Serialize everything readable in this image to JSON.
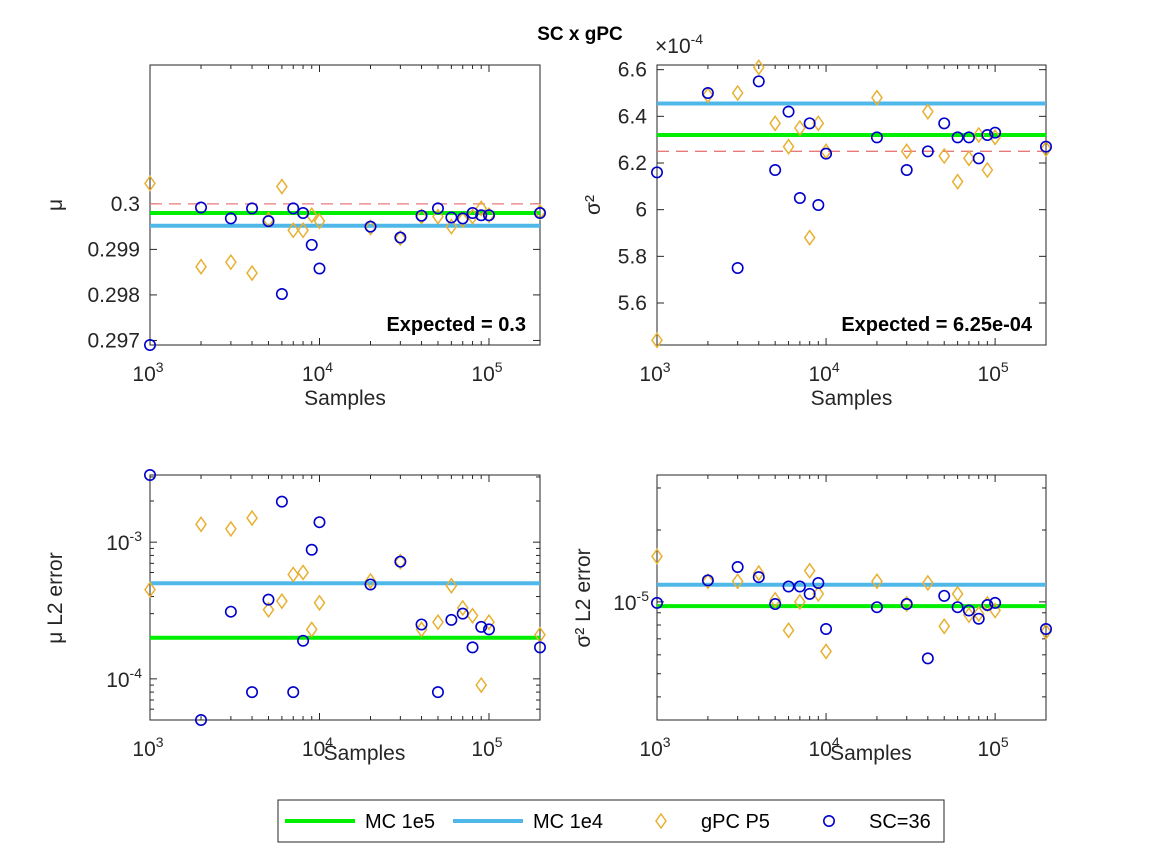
{
  "figure": {
    "title": "SC x gPC",
    "legend": {
      "placement": "bottom-center",
      "items": [
        {
          "label": "MC 1e5",
          "kind": "line",
          "color": "#00ee00"
        },
        {
          "label": "MC 1e4",
          "kind": "line",
          "color": "#4fb8e8"
        },
        {
          "label": "gPC P5",
          "kind": "diamond",
          "color": "#e8b030"
        },
        {
          "label": "SC=36",
          "kind": "circle",
          "color": "#0000cc"
        }
      ]
    }
  },
  "chart_data": [
    {
      "id": "mu",
      "type": "scatter",
      "xlabel": "Samples",
      "ylabel": "μ",
      "xscale": "log",
      "yscale": "linear",
      "xlim": [
        1000,
        200000
      ],
      "ylim": [
        0.2969,
        0.30305
      ],
      "yticks": [
        0.297,
        0.298,
        0.299,
        0.3
      ],
      "ytick_labels": [
        "0.297",
        "0.298",
        "0.299",
        "0.3"
      ],
      "xticks": [
        1000,
        10000,
        100000
      ],
      "xtick_labels": [
        {
          "base": "10",
          "exp": "3"
        },
        {
          "base": "10",
          "exp": "4"
        },
        {
          "base": "10",
          "exp": "5"
        }
      ],
      "annotation": "Expected = 0.3",
      "reference_line": {
        "y": 0.3,
        "color": "#e87a7a",
        "style": "dashed"
      },
      "hlines": [
        {
          "series": "MC 1e5",
          "y": 0.2998,
          "color": "#00ee00"
        },
        {
          "series": "MC 1e4",
          "y": 0.29952,
          "color": "#4fb8e8"
        }
      ],
      "series": [
        {
          "name": "gPC P5",
          "marker": "diamond",
          "color": "#e8b030",
          "x": [
            1000,
            2000,
            3000,
            4000,
            5000,
            6000,
            7000,
            8000,
            9000,
            10000,
            20000,
            30000,
            40000,
            50000,
            60000,
            70000,
            80000,
            90000,
            100000,
            200000
          ],
          "y": [
            0.30045,
            0.29862,
            0.29872,
            0.29848,
            0.29965,
            0.30038,
            0.29942,
            0.29942,
            0.29975,
            0.29962,
            0.29948,
            0.29925,
            0.29972,
            0.29972,
            0.2995,
            0.29965,
            0.29972,
            0.2999,
            0.29975,
            0.29982
          ]
        },
        {
          "name": "SC=36",
          "marker": "circle",
          "color": "#0000cc",
          "x": [
            1000,
            2000,
            3000,
            4000,
            5000,
            6000,
            7000,
            8000,
            9000,
            10000,
            20000,
            30000,
            40000,
            50000,
            60000,
            70000,
            80000,
            90000,
            100000,
            200000
          ],
          "y": [
            0.2969,
            0.29992,
            0.29968,
            0.2999,
            0.29962,
            0.29802,
            0.2999,
            0.2998,
            0.2991,
            0.29858,
            0.2995,
            0.29926,
            0.29974,
            0.2999,
            0.2997,
            0.29968,
            0.2998,
            0.29975,
            0.29975,
            0.2998
          ]
        }
      ]
    },
    {
      "id": "sigma2",
      "type": "scatter",
      "xlabel": "Samples",
      "ylabel": "σ²",
      "xscale": "log",
      "yscale": "linear",
      "xlim": [
        1000,
        200000
      ],
      "ylim": [
        5.42,
        6.62
      ],
      "y_multiplier": "×10^-4",
      "yticks": [
        5.6,
        5.8,
        6.0,
        6.2,
        6.4,
        6.6
      ],
      "ytick_labels": [
        "5.6",
        "5.8",
        "6",
        "6.2",
        "6.4",
        "6.6"
      ],
      "xticks": [
        1000,
        10000,
        100000
      ],
      "xtick_labels": [
        {
          "base": "10",
          "exp": "3"
        },
        {
          "base": "10",
          "exp": "4"
        },
        {
          "base": "10",
          "exp": "5"
        }
      ],
      "exponent_label": {
        "base": "×10",
        "exp": "-4"
      },
      "annotation": "Expected = 6.25e-04",
      "reference_line": {
        "y": 6.25,
        "color": "#e87a7a",
        "style": "dashed"
      },
      "hlines": [
        {
          "series": "MC 1e5",
          "y": 6.32,
          "color": "#00ee00"
        },
        {
          "series": "MC 1e4",
          "y": 6.455,
          "color": "#4fb8e8"
        }
      ],
      "series": [
        {
          "name": "gPC P5",
          "marker": "diamond",
          "color": "#e8b030",
          "x": [
            1000,
            2000,
            3000,
            4000,
            5000,
            6000,
            7000,
            8000,
            9000,
            10000,
            20000,
            30000,
            40000,
            50000,
            60000,
            70000,
            80000,
            90000,
            100000,
            200000
          ],
          "y": [
            5.44,
            6.49,
            6.5,
            6.61,
            6.37,
            6.27,
            6.35,
            5.88,
            6.37,
            6.25,
            6.48,
            6.25,
            6.42,
            6.23,
            6.12,
            6.22,
            6.32,
            6.17,
            6.31,
            6.26
          ]
        },
        {
          "name": "SC=36",
          "marker": "circle",
          "color": "#0000cc",
          "x": [
            1000,
            2000,
            3000,
            4000,
            5000,
            6000,
            7000,
            8000,
            9000,
            10000,
            20000,
            30000,
            40000,
            50000,
            60000,
            70000,
            80000,
            90000,
            100000,
            200000
          ],
          "y": [
            6.16,
            6.5,
            5.75,
            6.55,
            6.17,
            6.42,
            6.05,
            6.37,
            6.02,
            6.24,
            6.31,
            6.17,
            6.25,
            6.37,
            6.31,
            6.31,
            6.22,
            6.32,
            6.33,
            6.27
          ]
        }
      ]
    },
    {
      "id": "mu_err",
      "type": "scatter",
      "xlabel": "Samples",
      "ylabel": "μ L2 error",
      "xscale": "log",
      "yscale": "log",
      "xlim": [
        1000,
        200000
      ],
      "ylim": [
        5e-05,
        0.0031
      ],
      "yticks": [
        0.0001,
        0.001
      ],
      "ytick_labels": [
        {
          "base": "10",
          "exp": "-4"
        },
        {
          "base": "10",
          "exp": "-3"
        }
      ],
      "xticks": [
        1000,
        10000,
        100000
      ],
      "xtick_labels": [
        {
          "base": "10",
          "exp": "3"
        },
        {
          "base": "10",
          "exp": "4"
        },
        {
          "base": "10",
          "exp": "5"
        }
      ],
      "hlines": [
        {
          "series": "MC 1e5",
          "y": 0.0002,
          "color": "#00ee00"
        },
        {
          "series": "MC 1e4",
          "y": 0.0005,
          "color": "#4fb8e8"
        }
      ],
      "series": [
        {
          "name": "gPC P5",
          "marker": "diamond",
          "color": "#e8b030",
          "x": [
            1000,
            2000,
            3000,
            4000,
            5000,
            6000,
            7000,
            8000,
            9000,
            10000,
            20000,
            30000,
            40000,
            50000,
            60000,
            70000,
            80000,
            90000,
            100000,
            200000
          ],
          "y": [
            0.00045,
            0.00135,
            0.00125,
            0.0015,
            0.00032,
            0.00037,
            0.00058,
            0.0006,
            0.00023,
            0.00036,
            0.00052,
            0.00072,
            0.00023,
            0.00026,
            0.00048,
            0.00033,
            0.00029,
            9e-05,
            0.00026,
            0.00021
          ]
        },
        {
          "name": "SC=36",
          "marker": "circle",
          "color": "#0000cc",
          "x": [
            1000,
            2000,
            3000,
            4000,
            5000,
            6000,
            7000,
            8000,
            9000,
            10000,
            20000,
            30000,
            40000,
            50000,
            60000,
            70000,
            80000,
            90000,
            100000,
            200000
          ],
          "y": [
            0.0031,
            5e-05,
            0.00031,
            8e-05,
            0.00038,
            0.00198,
            8e-05,
            0.00019,
            0.00088,
            0.0014,
            0.00049,
            0.00072,
            0.00025,
            8e-05,
            0.00027,
            0.0003,
            0.00017,
            0.00024,
            0.00023,
            0.00017
          ]
        }
      ]
    },
    {
      "id": "sigma2_err",
      "type": "scatter",
      "xlabel": "Samples",
      "ylabel": "σ² L2 error",
      "xscale": "log",
      "yscale": "log",
      "xlim": [
        1000,
        200000
      ],
      "ylim": [
        3.2e-06,
        3.4e-05
      ],
      "yticks": [
        1e-05
      ],
      "ytick_labels": [
        {
          "base": "10",
          "exp": "-5"
        }
      ],
      "xticks": [
        1000,
        10000,
        100000
      ],
      "xtick_labels": [
        {
          "base": "10",
          "exp": "3"
        },
        {
          "base": "10",
          "exp": "4"
        },
        {
          "base": "10",
          "exp": "5"
        }
      ],
      "hlines": [
        {
          "series": "MC 1e5",
          "y": 9.6e-06,
          "color": "#00ee00"
        },
        {
          "series": "MC 1e4",
          "y": 1.18e-05,
          "color": "#4fb8e8"
        }
      ],
      "series": [
        {
          "name": "gPC P5",
          "marker": "diamond",
          "color": "#e8b030",
          "x": [
            1000,
            2000,
            3000,
            4000,
            5000,
            6000,
            7000,
            8000,
            9000,
            10000,
            20000,
            30000,
            40000,
            50000,
            60000,
            70000,
            80000,
            90000,
            100000,
            200000
          ],
          "y": [
            1.55e-05,
            1.22e-05,
            1.22e-05,
            1.32e-05,
            1.02e-05,
            7.6e-06,
            1e-05,
            1.35e-05,
            1.08e-05,
            6.2e-06,
            1.22e-05,
            9.8e-06,
            1.2e-05,
            7.9e-06,
            1.08e-05,
            8.8e-06,
            8.9e-06,
            9.8e-06,
            9.2e-06,
            7.5e-06
          ]
        },
        {
          "name": "SC=36",
          "marker": "circle",
          "color": "#0000cc",
          "x": [
            1000,
            2000,
            3000,
            4000,
            5000,
            6000,
            7000,
            8000,
            9000,
            10000,
            20000,
            30000,
            40000,
            50000,
            60000,
            70000,
            80000,
            90000,
            100000,
            200000
          ],
          "y": [
            9.9e-06,
            1.23e-05,
            1.4e-05,
            1.27e-05,
            9.8e-06,
            1.16e-05,
            1.16e-05,
            1.08e-05,
            1.2e-05,
            7.7e-06,
            9.5e-06,
            9.8e-06,
            5.8e-06,
            1.06e-05,
            9.5e-06,
            9.2e-06,
            8.5e-06,
            9.7e-06,
            9.9e-06,
            7.7e-06
          ]
        }
      ]
    }
  ]
}
